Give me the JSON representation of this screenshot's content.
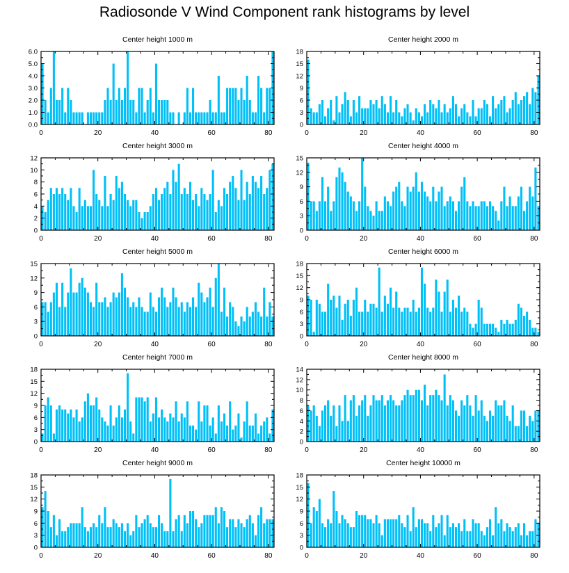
{
  "title": "Radiosonde V Wind Component rank histograms by level",
  "colors": {
    "bar": "#00c0f8",
    "axis": "#000000"
  },
  "chart_data": [
    {
      "type": "bar",
      "title": "Center height 1000 m",
      "xlim": [
        0,
        82
      ],
      "xticks": [
        0,
        20,
        40,
        60,
        80
      ],
      "ylim": [
        0,
        6
      ],
      "yticks": [
        0,
        1,
        2,
        3,
        4,
        5,
        6
      ],
      "ytick_labels": [
        "0.0",
        "1.0",
        "2.0",
        "3.0",
        "4.0",
        "5.0",
        "6.0"
      ],
      "values": [
        5,
        2,
        1,
        3,
        6,
        2,
        2,
        3,
        1,
        3,
        2,
        1,
        1,
        1,
        1,
        0,
        1,
        1,
        1,
        1,
        1,
        1,
        2,
        3,
        2,
        5,
        2,
        3,
        2,
        3,
        6,
        2,
        2,
        1,
        3,
        3,
        1,
        2,
        3,
        1,
        5,
        2,
        2,
        2,
        2,
        1,
        1,
        0,
        1,
        0,
        1,
        3,
        1,
        3,
        1,
        1,
        1,
        1,
        1,
        2,
        1,
        1,
        4,
        1,
        1,
        3,
        3,
        3,
        3,
        2,
        3,
        2,
        4,
        2,
        1,
        1,
        4,
        3,
        1,
        3,
        3,
        6
      ]
    },
    {
      "type": "bar",
      "title": "Center height 2000 m",
      "xlim": [
        0,
        82
      ],
      "xticks": [
        0,
        20,
        40,
        60,
        80
      ],
      "ylim": [
        0,
        18
      ],
      "yticks": [
        0,
        3,
        6,
        9,
        12,
        15,
        18
      ],
      "values": [
        16,
        4,
        3,
        3,
        5,
        6,
        2,
        4,
        6,
        1,
        7,
        3,
        5,
        8,
        6,
        2,
        6,
        3,
        7,
        4,
        4,
        4,
        6,
        5,
        6,
        4,
        7,
        5,
        3,
        7,
        3,
        6,
        3,
        2,
        4,
        5,
        3,
        1,
        4,
        3,
        2,
        5,
        3,
        6,
        5,
        4,
        6,
        3,
        5,
        3,
        4,
        7,
        5,
        2,
        4,
        5,
        3,
        2,
        6,
        2,
        4,
        4,
        6,
        5,
        2,
        7,
        4,
        5,
        6,
        7,
        3,
        4,
        6,
        8,
        5,
        6,
        7,
        8,
        5,
        9,
        8,
        12
      ]
    },
    {
      "type": "bar",
      "title": "Center height 3000 m",
      "xlim": [
        0,
        82
      ],
      "xticks": [
        0,
        20,
        40,
        60,
        80
      ],
      "ylim": [
        0,
        12
      ],
      "yticks": [
        0,
        2,
        4,
        6,
        8,
        10,
        12
      ],
      "values": [
        4,
        3,
        5,
        7,
        6,
        7,
        6,
        7,
        6,
        5,
        7,
        4,
        3,
        7,
        4,
        5,
        4,
        4,
        10,
        6,
        5,
        4,
        9,
        4,
        6,
        5,
        9,
        7,
        8,
        6,
        5,
        4,
        5,
        5,
        3,
        2,
        3,
        3,
        4,
        6,
        7,
        5,
        6,
        7,
        8,
        6,
        10,
        8,
        11,
        6,
        7,
        6,
        8,
        5,
        6,
        4,
        7,
        6,
        5,
        6,
        10,
        3,
        5,
        4,
        7,
        6,
        8,
        9,
        7,
        5,
        10,
        5,
        8,
        6,
        9,
        8,
        7,
        9,
        6,
        7,
        10,
        11
      ]
    },
    {
      "type": "bar",
      "title": "Center height 4000 m",
      "xlim": [
        0,
        82
      ],
      "xticks": [
        0,
        20,
        40,
        60,
        80
      ],
      "ylim": [
        0,
        15
      ],
      "yticks": [
        0,
        3,
        6,
        9,
        12,
        15
      ],
      "values": [
        14,
        6,
        6,
        4,
        6,
        11,
        6,
        9,
        4,
        6,
        11,
        13,
        12,
        10,
        8,
        7,
        6,
        4,
        6,
        15,
        9,
        5,
        4,
        3,
        6,
        4,
        4,
        7,
        6,
        5,
        8,
        9,
        10,
        6,
        5,
        9,
        8,
        9,
        12,
        8,
        10,
        8,
        7,
        6,
        9,
        6,
        8,
        9,
        5,
        6,
        7,
        6,
        4,
        6,
        9,
        11,
        6,
        5,
        6,
        5,
        5,
        6,
        6,
        5,
        6,
        5,
        4,
        2,
        6,
        9,
        5,
        7,
        5,
        5,
        7,
        9,
        4,
        6,
        9,
        7,
        13,
        5
      ]
    },
    {
      "type": "bar",
      "title": "Center height 5000 m",
      "xlim": [
        0,
        82
      ],
      "xticks": [
        0,
        20,
        40,
        60,
        80
      ],
      "ylim": [
        0,
        15
      ],
      "yticks": [
        0,
        3,
        6,
        9,
        12,
        15
      ],
      "values": [
        7,
        7,
        5,
        7,
        9,
        11,
        6,
        11,
        6,
        9,
        14,
        9,
        9,
        11,
        12,
        10,
        9,
        7,
        6,
        11,
        7,
        7,
        8,
        6,
        7,
        9,
        8,
        9,
        13,
        10,
        8,
        6,
        7,
        6,
        8,
        6,
        5,
        5,
        9,
        6,
        5,
        8,
        10,
        8,
        6,
        7,
        10,
        8,
        6,
        7,
        5,
        7,
        6,
        8,
        6,
        11,
        9,
        7,
        8,
        10,
        6,
        12,
        15,
        5,
        10,
        4,
        7,
        6,
        3,
        2,
        4,
        3,
        6,
        4,
        5,
        7,
        5,
        4,
        10,
        4,
        7,
        4
      ]
    },
    {
      "type": "bar",
      "title": "Center height 6000 m",
      "xlim": [
        0,
        82
      ],
      "xticks": [
        0,
        20,
        40,
        60,
        80
      ],
      "ylim": [
        0,
        18
      ],
      "yticks": [
        0,
        3,
        6,
        9,
        12,
        15,
        18
      ],
      "values": [
        10,
        9,
        1,
        9,
        8,
        6,
        6,
        13,
        9,
        10,
        7,
        10,
        4,
        8,
        9,
        5,
        9,
        12,
        6,
        6,
        9,
        6,
        8,
        8,
        7,
        17,
        6,
        10,
        8,
        12,
        7,
        11,
        7,
        6,
        7,
        7,
        6,
        9,
        6,
        7,
        17,
        13,
        7,
        6,
        7,
        14,
        11,
        6,
        11,
        14,
        6,
        9,
        7,
        10,
        6,
        7,
        6,
        3,
        2,
        3,
        9,
        7,
        3,
        3,
        3,
        3,
        2,
        1,
        4,
        3,
        4,
        3,
        3,
        4,
        8,
        7,
        5,
        6,
        4,
        2,
        2,
        1
      ]
    },
    {
      "type": "bar",
      "title": "Center height 7000 m",
      "xlim": [
        0,
        82
      ],
      "xticks": [
        0,
        20,
        40,
        60,
        80
      ],
      "ylim": [
        0,
        18
      ],
      "yticks": [
        0,
        3,
        6,
        9,
        12,
        15,
        18
      ],
      "values": [
        2,
        9,
        11,
        9,
        2,
        8,
        9,
        8,
        8,
        7,
        8,
        6,
        8,
        5,
        6,
        10,
        12,
        9,
        9,
        11,
        8,
        6,
        5,
        4,
        9,
        4,
        6,
        9,
        6,
        8,
        17,
        5,
        2,
        11,
        11,
        11,
        10,
        11,
        5,
        7,
        11,
        6,
        8,
        6,
        5,
        7,
        6,
        10,
        5,
        7,
        6,
        10,
        4,
        4,
        3,
        10,
        5,
        9,
        9,
        4,
        6,
        2,
        9,
        5,
        7,
        4,
        10,
        3,
        4,
        7,
        1,
        5,
        10,
        4,
        4,
        7,
        2,
        4,
        5,
        6,
        2,
        8
      ]
    },
    {
      "type": "bar",
      "title": "Center height 8000 m",
      "xlim": [
        0,
        82
      ],
      "xticks": [
        0,
        20,
        40,
        60,
        80
      ],
      "ylim": [
        0,
        14
      ],
      "yticks": [
        0,
        2,
        4,
        6,
        8,
        10,
        12,
        14
      ],
      "values": [
        7,
        6,
        7,
        5,
        3,
        6,
        7,
        8,
        5,
        7,
        3,
        7,
        4,
        9,
        4,
        8,
        9,
        5,
        7,
        8,
        9,
        5,
        7,
        9,
        8,
        8,
        9,
        7,
        8,
        9,
        8,
        7,
        7,
        8,
        9,
        10,
        9,
        9,
        10,
        10,
        8,
        11,
        7,
        9,
        9,
        10,
        9,
        8,
        13,
        7,
        9,
        8,
        6,
        5,
        8,
        7,
        9,
        7,
        5,
        9,
        6,
        8,
        5,
        4,
        6,
        5,
        8,
        7,
        7,
        8,
        5,
        4,
        7,
        3,
        3,
        6,
        6,
        3,
        5,
        4,
        6,
        6
      ]
    },
    {
      "type": "bar",
      "title": "Center height 9000 m",
      "xlim": [
        0,
        82
      ],
      "xticks": [
        0,
        20,
        40,
        60,
        80
      ],
      "ylim": [
        0,
        18
      ],
      "yticks": [
        0,
        3,
        6,
        9,
        12,
        15,
        18
      ],
      "values": [
        10,
        14,
        9,
        5,
        8,
        3,
        7,
        4,
        4,
        5,
        6,
        6,
        6,
        6,
        10,
        5,
        4,
        5,
        6,
        5,
        8,
        6,
        10,
        5,
        5,
        7,
        6,
        5,
        6,
        4,
        6,
        3,
        4,
        8,
        5,
        6,
        7,
        8,
        6,
        5,
        5,
        8,
        6,
        4,
        4,
        17,
        4,
        7,
        8,
        4,
        8,
        6,
        9,
        9,
        7,
        5,
        6,
        8,
        8,
        8,
        8,
        10,
        6,
        10,
        9,
        5,
        7,
        7,
        5,
        7,
        6,
        5,
        7,
        8,
        6,
        3,
        8,
        10,
        6,
        7,
        7,
        7
      ]
    },
    {
      "type": "bar",
      "title": "Center height 10000 m",
      "xlim": [
        0,
        82
      ],
      "xticks": [
        0,
        20,
        40,
        60,
        80
      ],
      "ylim": [
        0,
        18
      ],
      "yticks": [
        0,
        3,
        6,
        9,
        12,
        15,
        18
      ],
      "values": [
        16,
        6,
        10,
        9,
        12,
        6,
        5,
        7,
        6,
        14,
        9,
        6,
        8,
        7,
        6,
        5,
        5,
        9,
        8,
        8,
        8,
        7,
        7,
        6,
        8,
        6,
        3,
        7,
        7,
        7,
        7,
        7,
        8,
        6,
        5,
        8,
        4,
        10,
        5,
        7,
        7,
        6,
        6,
        4,
        8,
        5,
        6,
        8,
        3,
        8,
        5,
        6,
        5,
        6,
        4,
        7,
        4,
        4,
        7,
        6,
        6,
        4,
        3,
        5,
        7,
        3,
        10,
        6,
        7,
        4,
        6,
        5,
        4,
        5,
        6,
        3,
        6,
        3,
        4,
        4,
        7,
        6
      ]
    }
  ]
}
